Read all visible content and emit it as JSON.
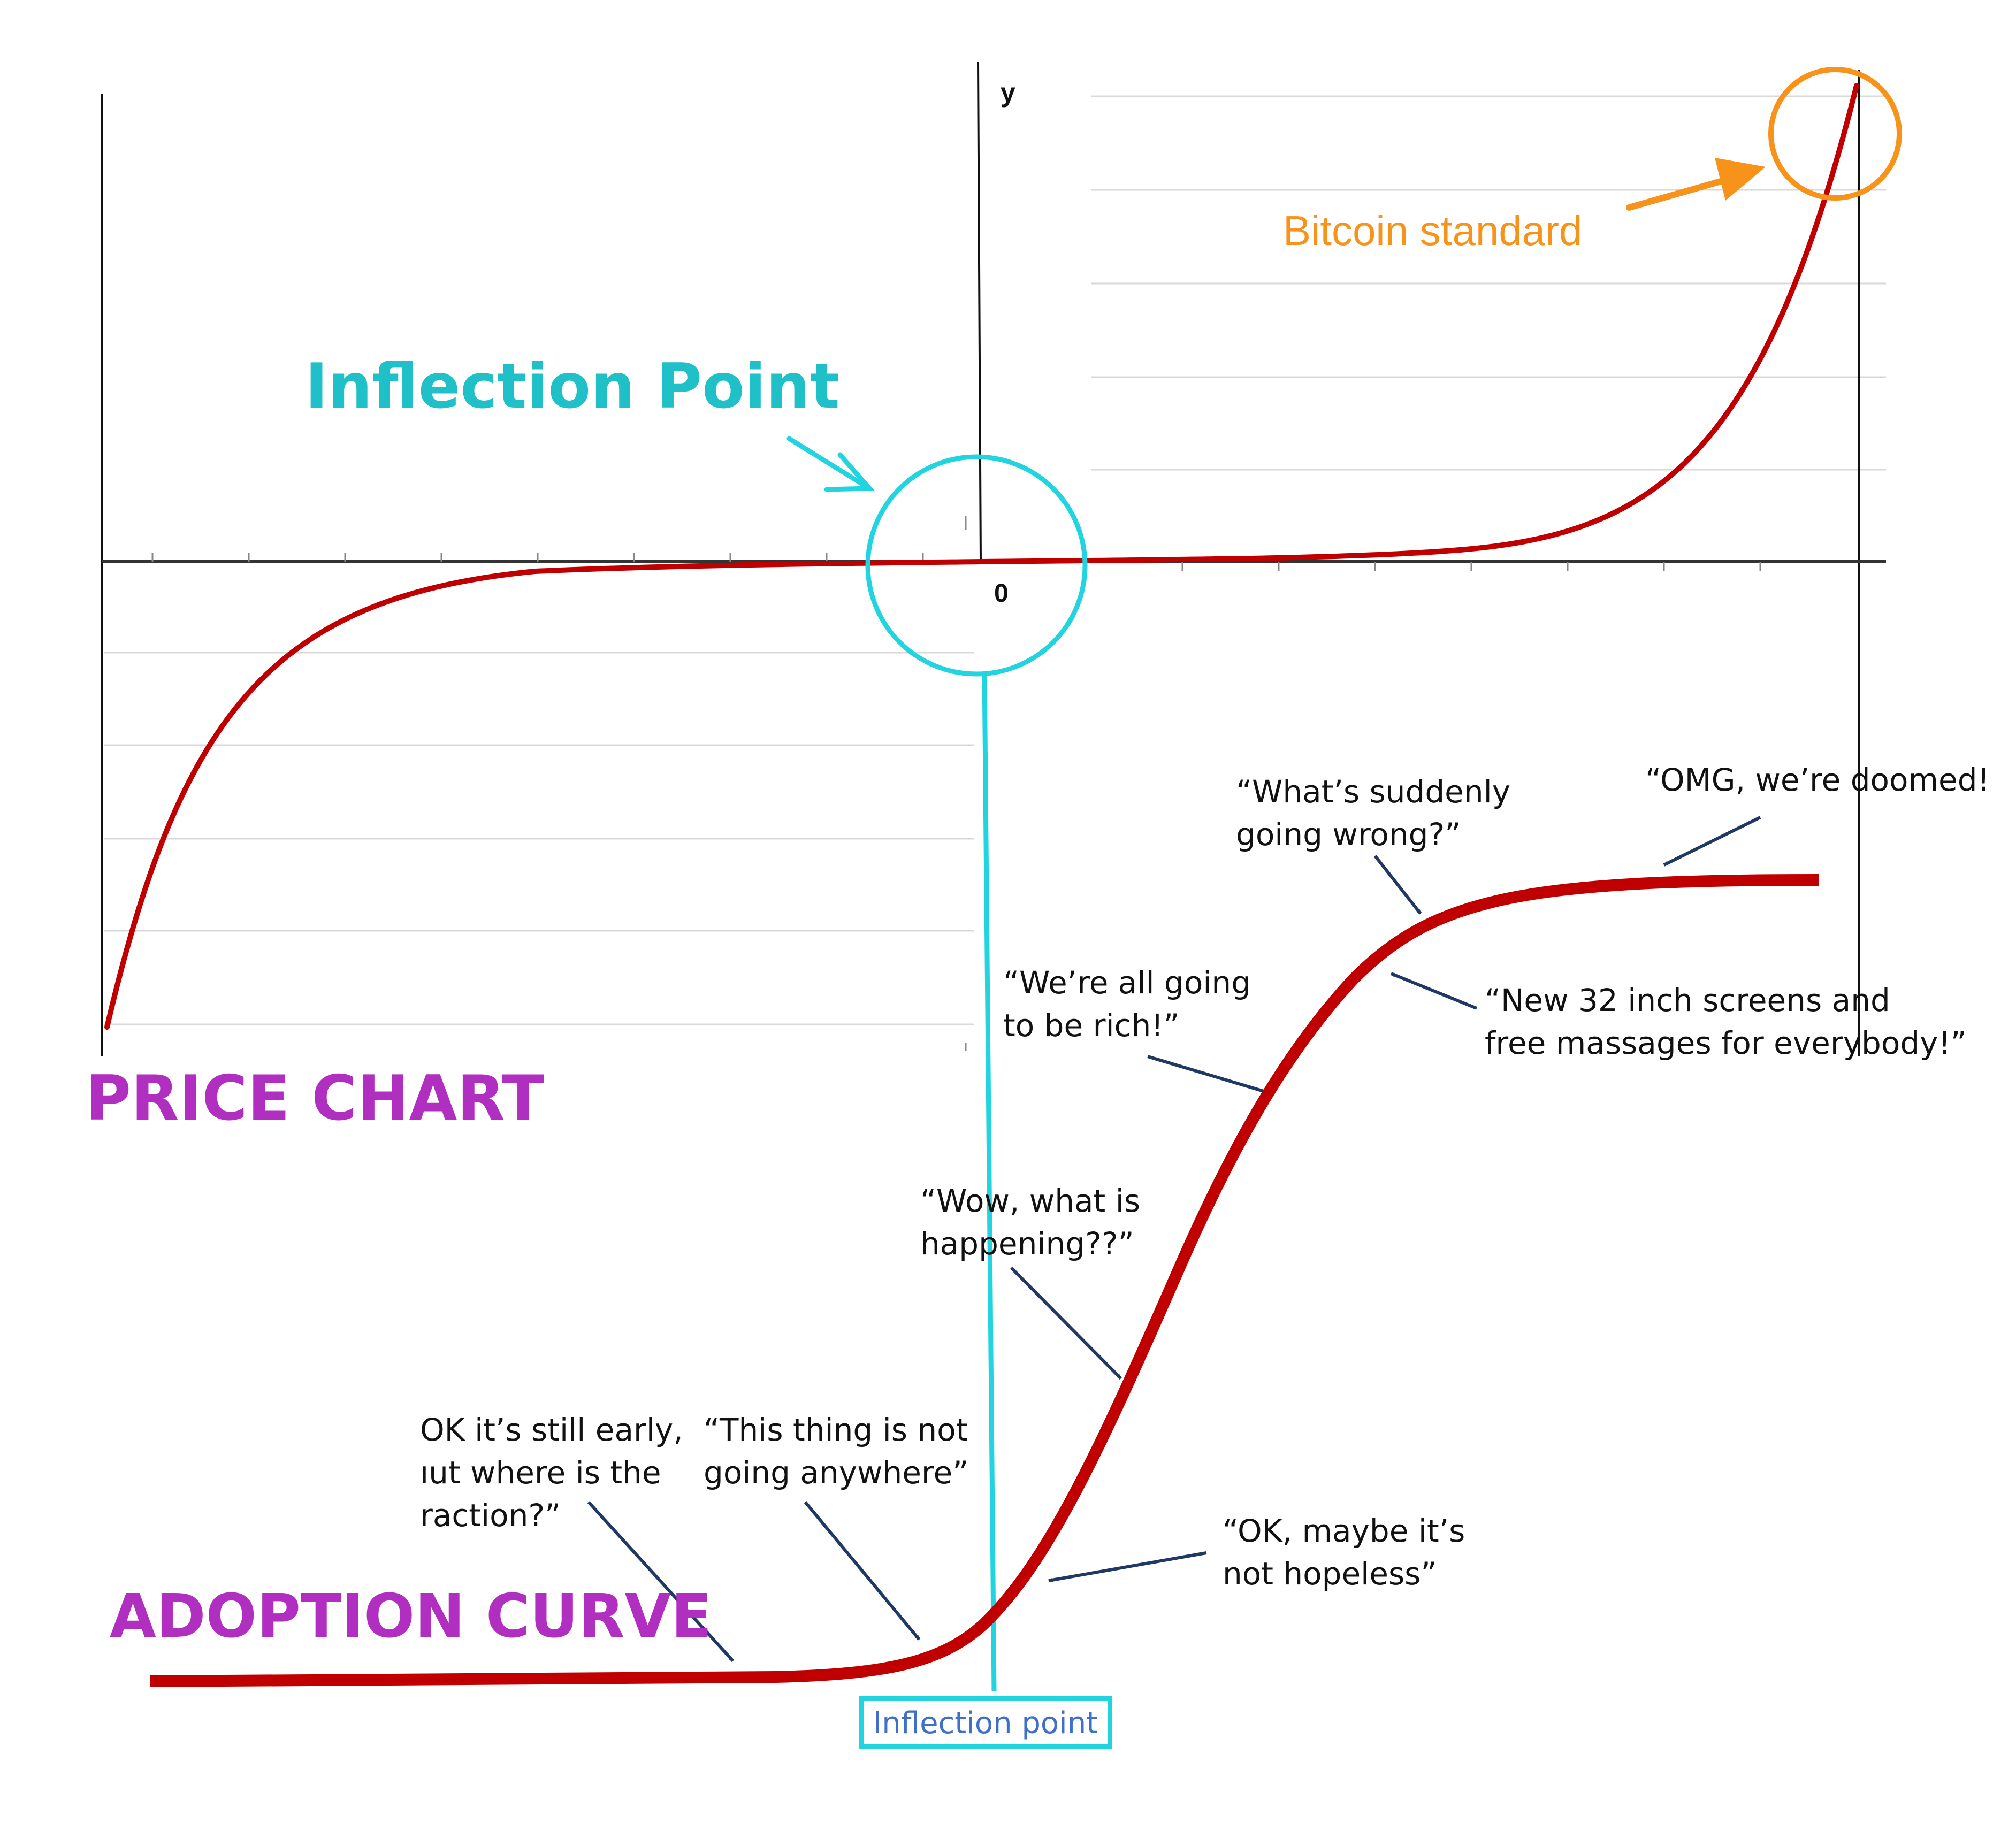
{
  "price_chart": {
    "label": "PRICE CHART",
    "axis_y_label": "y",
    "axis_origin_label": "0",
    "inflection_label": "Inflection Point",
    "bitcoin_label": "Bitcoin standard"
  },
  "adoption_curve": {
    "label": "ADOPTION CURVE",
    "inflection_box_label": "Inflection point",
    "quotes": [
      {
        "lines": [
          "OK it’s still early,",
          "ıut where is the",
          "raction?”"
        ]
      },
      {
        "lines": [
          "“This thing is not",
          "going anywhere”"
        ]
      },
      {
        "lines": [
          "“OK, maybe it’s",
          "not hopeless”"
        ]
      },
      {
        "lines": [
          "“Wow, what is",
          "happening??”"
        ]
      },
      {
        "lines": [
          "“We’re all going",
          "to be rich!”"
        ]
      },
      {
        "lines": [
          "“What’s suddenly",
          "going wrong?”"
        ]
      },
      {
        "lines": [
          "“New 32 inch screens and",
          "free massages for everybody!”"
        ]
      },
      {
        "lines": [
          "“OMG, we’re doomed!"
        ]
      }
    ]
  },
  "colors": {
    "curve": "#c00000",
    "cyan": "#22d3e0",
    "inflection_text": "#20c0c8",
    "orange": "#f7931a",
    "purple": "#b02ec0",
    "arrow_navy": "#1f3864",
    "box_text": "#3f6fc6"
  }
}
